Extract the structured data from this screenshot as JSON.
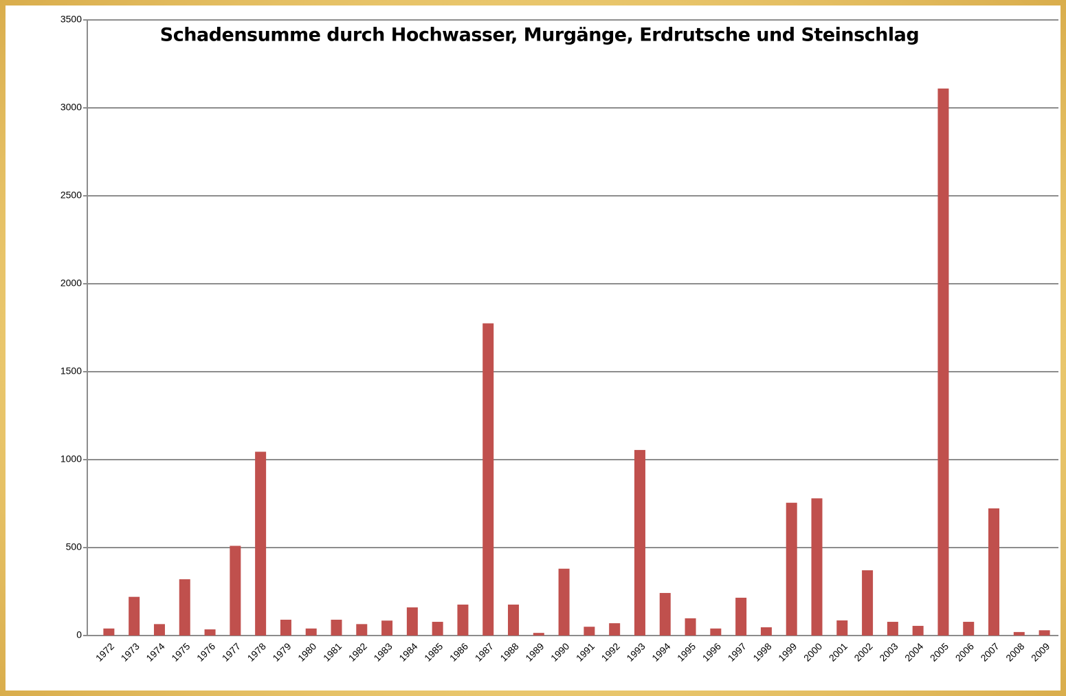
{
  "chart_data": {
    "type": "bar",
    "title": "Schadensumme durch Hochwasser, Murgänge, Erdrutsche und Steinschlag",
    "categories": [
      "1972",
      "1973",
      "1974",
      "1975",
      "1976",
      "1977",
      "1978",
      "1979",
      "1980",
      "1981",
      "1982",
      "1983",
      "1984",
      "1985",
      "1986",
      "1987",
      "1988",
      "1989",
      "1990",
      "1991",
      "1992",
      "1993",
      "1994",
      "1995",
      "1996",
      "1997",
      "1998",
      "1999",
      "2000",
      "2001",
      "2002",
      "2003",
      "2004",
      "2005",
      "2006",
      "2007",
      "2008",
      "2009"
    ],
    "values": [
      40,
      220,
      65,
      320,
      35,
      510,
      1045,
      90,
      40,
      90,
      65,
      85,
      160,
      78,
      176,
      1775,
      176,
      15,
      380,
      50,
      70,
      1055,
      242,
      98,
      40,
      215,
      47,
      755,
      780,
      86,
      371,
      78,
      55,
      3110,
      78,
      723,
      20,
      30
    ],
    "color": "#c0504d",
    "ylim": [
      0,
      3500
    ],
    "yticks": [
      0,
      500,
      1000,
      1500,
      2000,
      2500,
      3000,
      3500
    ],
    "grid": true
  }
}
